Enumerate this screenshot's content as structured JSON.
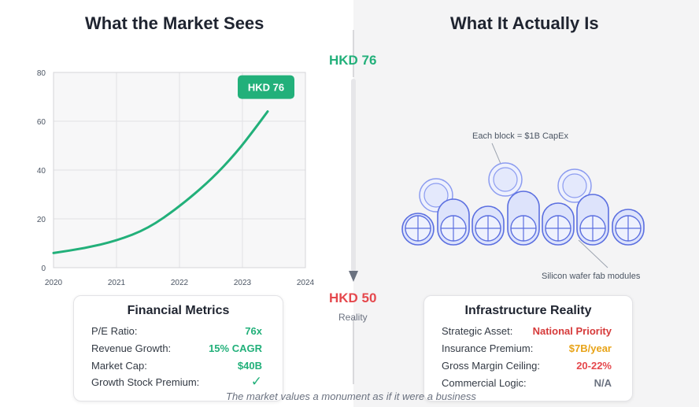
{
  "left_title": "What the Market Sees",
  "right_title": "What It Actually Is",
  "price_high": "HKD 76",
  "price_low": "HKD 50",
  "price_low_caption": "Reality",
  "colors": {
    "green": "#22b07a",
    "red": "#e5484d",
    "orange": "#e8a317",
    "gray": "#6b7280",
    "blue": "#5b6fe0"
  },
  "chart_data": {
    "type": "line",
    "x_ticks": [
      "2020",
      "2021",
      "2022",
      "2023",
      "2024"
    ],
    "y_ticks": [
      "0",
      "20",
      "40",
      "60",
      "80"
    ],
    "xlim": [
      2020,
      2024
    ],
    "ylim": [
      0,
      80
    ],
    "grid": true,
    "series": [
      {
        "x": [
          2020.0,
          2020.5,
          2021.0,
          2021.5,
          2022.0,
          2022.5,
          2022.9,
          2023.2,
          2023.4
        ],
        "y": [
          6,
          8,
          11,
          16,
          25,
          36,
          47,
          57,
          64
        ]
      }
    ],
    "annotation": "HKD 76"
  },
  "diagram": {
    "top_label": "Each block = $1B CapEx",
    "bottom_label": "Silicon wafer fab modules"
  },
  "financial": {
    "title": "Financial Metrics",
    "rows": [
      {
        "label": "P/E Ratio:",
        "value": "76x"
      },
      {
        "label": "Revenue Growth:",
        "value": "15% CAGR"
      },
      {
        "label": "Market Cap:",
        "value": "$40B"
      },
      {
        "label": "Growth Stock Premium:",
        "value": "✓"
      }
    ]
  },
  "infrastructure": {
    "title": "Infrastructure Reality",
    "rows": [
      {
        "label": "Strategic Asset:",
        "value": "National Priority"
      },
      {
        "label": "Insurance Premium:",
        "value": "$7B/year"
      },
      {
        "label": "Gross Margin Ceiling:",
        "value": "20-22%"
      },
      {
        "label": "Commercial Logic:",
        "value": "N/A"
      }
    ]
  },
  "footer": "The market values a monument as if it were a business"
}
